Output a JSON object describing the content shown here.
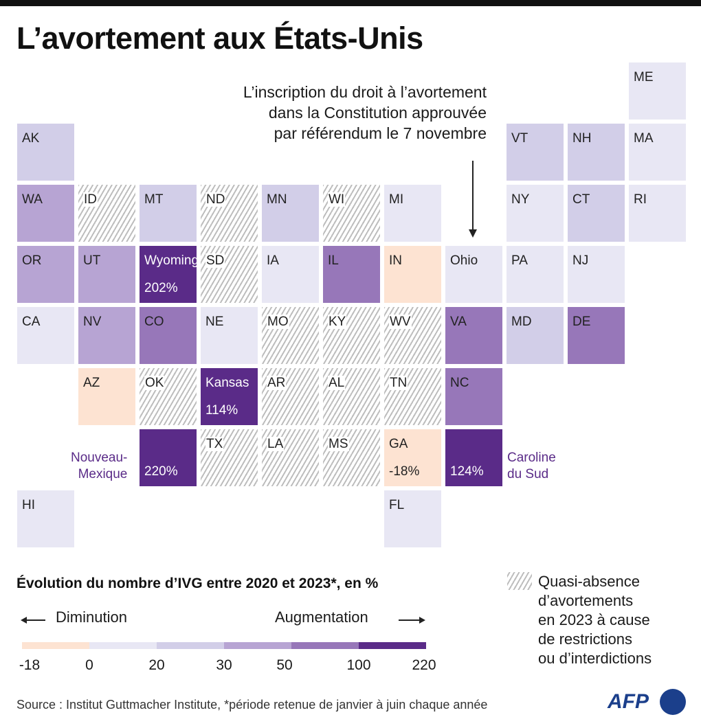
{
  "title": "L’avortement aux États-Unis",
  "annotation": {
    "lines": [
      "L’inscription du droit à l’avortement",
      "dans la Constitution approuvée",
      "par référendum le 7 novembre"
    ]
  },
  "colors": {
    "c0": "#fde3d2",
    "c1": "#e8e7f4",
    "c2": "#d2cee8",
    "c3": "#b7a4d3",
    "c4": "#9777b9",
    "c5": "#5a2b88",
    "hatch": "#bdbdbd",
    "accent": "#5a2b88",
    "logo": "#1b3f8b"
  },
  "states": [
    {
      "abbr": "ME",
      "row": 0,
      "col": 10,
      "cls": "c1"
    },
    {
      "abbr": "AK",
      "row": 1,
      "col": 0,
      "cls": "c2"
    },
    {
      "abbr": "VT",
      "row": 1,
      "col": 8,
      "cls": "c2"
    },
    {
      "abbr": "NH",
      "row": 1,
      "col": 9,
      "cls": "c2"
    },
    {
      "abbr": "MA",
      "row": 1,
      "col": 10,
      "cls": "c1"
    },
    {
      "abbr": "WA",
      "row": 2,
      "col": 0,
      "cls": "c3"
    },
    {
      "abbr": "ID",
      "row": 2,
      "col": 1,
      "cls": "hatch"
    },
    {
      "abbr": "MT",
      "row": 2,
      "col": 2,
      "cls": "c2"
    },
    {
      "abbr": "ND",
      "row": 2,
      "col": 3,
      "cls": "hatch"
    },
    {
      "abbr": "MN",
      "row": 2,
      "col": 4,
      "cls": "c2"
    },
    {
      "abbr": "WI",
      "row": 2,
      "col": 5,
      "cls": "hatch"
    },
    {
      "abbr": "MI",
      "row": 2,
      "col": 6,
      "cls": "c1"
    },
    {
      "abbr": "NY",
      "row": 2,
      "col": 8,
      "cls": "c1"
    },
    {
      "abbr": "CT",
      "row": 2,
      "col": 9,
      "cls": "c2"
    },
    {
      "abbr": "RI",
      "row": 2,
      "col": 10,
      "cls": "c1"
    },
    {
      "abbr": "OR",
      "row": 3,
      "col": 0,
      "cls": "c3"
    },
    {
      "abbr": "UT",
      "row": 3,
      "col": 1,
      "cls": "c3"
    },
    {
      "abbr": "Wyoming",
      "row": 3,
      "col": 2,
      "cls": "c5",
      "pct": "202%"
    },
    {
      "abbr": "SD",
      "row": 3,
      "col": 3,
      "cls": "hatch"
    },
    {
      "abbr": "IA",
      "row": 3,
      "col": 4,
      "cls": "c1"
    },
    {
      "abbr": "IL",
      "row": 3,
      "col": 5,
      "cls": "c4"
    },
    {
      "abbr": "IN",
      "row": 3,
      "col": 6,
      "cls": "c0"
    },
    {
      "abbr": "Ohio",
      "row": 3,
      "col": 7,
      "cls": "c1"
    },
    {
      "abbr": "PA",
      "row": 3,
      "col": 8,
      "cls": "c1"
    },
    {
      "abbr": "NJ",
      "row": 3,
      "col": 9,
      "cls": "c1"
    },
    {
      "abbr": "CA",
      "row": 4,
      "col": 0,
      "cls": "c1"
    },
    {
      "abbr": "NV",
      "row": 4,
      "col": 1,
      "cls": "c3"
    },
    {
      "abbr": "CO",
      "row": 4,
      "col": 2,
      "cls": "c4"
    },
    {
      "abbr": "NE",
      "row": 4,
      "col": 3,
      "cls": "c1"
    },
    {
      "abbr": "MO",
      "row": 4,
      "col": 4,
      "cls": "hatch"
    },
    {
      "abbr": "KY",
      "row": 4,
      "col": 5,
      "cls": "hatch"
    },
    {
      "abbr": "WV",
      "row": 4,
      "col": 6,
      "cls": "hatch"
    },
    {
      "abbr": "VA",
      "row": 4,
      "col": 7,
      "cls": "c4"
    },
    {
      "abbr": "MD",
      "row": 4,
      "col": 8,
      "cls": "c2"
    },
    {
      "abbr": "DE",
      "row": 4,
      "col": 9,
      "cls": "c4"
    },
    {
      "abbr": "AZ",
      "row": 5,
      "col": 1,
      "cls": "c0"
    },
    {
      "abbr": "OK",
      "row": 5,
      "col": 2,
      "cls": "hatch"
    },
    {
      "abbr": "Kansas",
      "row": 5,
      "col": 3,
      "cls": "c5",
      "pct": "114%"
    },
    {
      "abbr": "AR",
      "row": 5,
      "col": 4,
      "cls": "hatch"
    },
    {
      "abbr": "AL",
      "row": 5,
      "col": 5,
      "cls": "hatch"
    },
    {
      "abbr": "TN",
      "row": 5,
      "col": 6,
      "cls": "hatch"
    },
    {
      "abbr": "NC",
      "row": 5,
      "col": 7,
      "cls": "c4"
    },
    {
      "abbr": "",
      "row": 6,
      "col": 2,
      "cls": "c5",
      "pct": "220%"
    },
    {
      "abbr": "TX",
      "row": 6,
      "col": 3,
      "cls": "hatch"
    },
    {
      "abbr": "LA",
      "row": 6,
      "col": 4,
      "cls": "hatch"
    },
    {
      "abbr": "MS",
      "row": 6,
      "col": 5,
      "cls": "hatch"
    },
    {
      "abbr": "GA",
      "row": 6,
      "col": 6,
      "cls": "c0",
      "pct": "-18%"
    },
    {
      "abbr": "",
      "row": 6,
      "col": 7,
      "cls": "c5",
      "pct": "124%"
    },
    {
      "abbr": "HI",
      "row": 7,
      "col": 0,
      "cls": "c1"
    },
    {
      "abbr": "FL",
      "row": 7,
      "col": 6,
      "cls": "c1"
    }
  ],
  "side_labels": {
    "nm": [
      "Nouveau-",
      "Mexique"
    ],
    "sc": [
      "Caroline",
      "du Sud"
    ]
  },
  "legend": {
    "title": "Évolution du nombre d’IVG entre 2020 et 2023*, en %",
    "decrease": "Diminution",
    "increase": "Augmentation",
    "ticks": [
      "-18",
      "0",
      "20",
      "30",
      "50",
      "100",
      "220"
    ],
    "hatch_lines": [
      "Quasi-absence",
      "d’avortements",
      "en 2023 à cause",
      "de restrictions",
      "ou d’interdictions"
    ]
  },
  "source": "Source : Institut Guttmacher Institute, *période retenue de janvier à juin chaque année",
  "logo": "AFP"
}
